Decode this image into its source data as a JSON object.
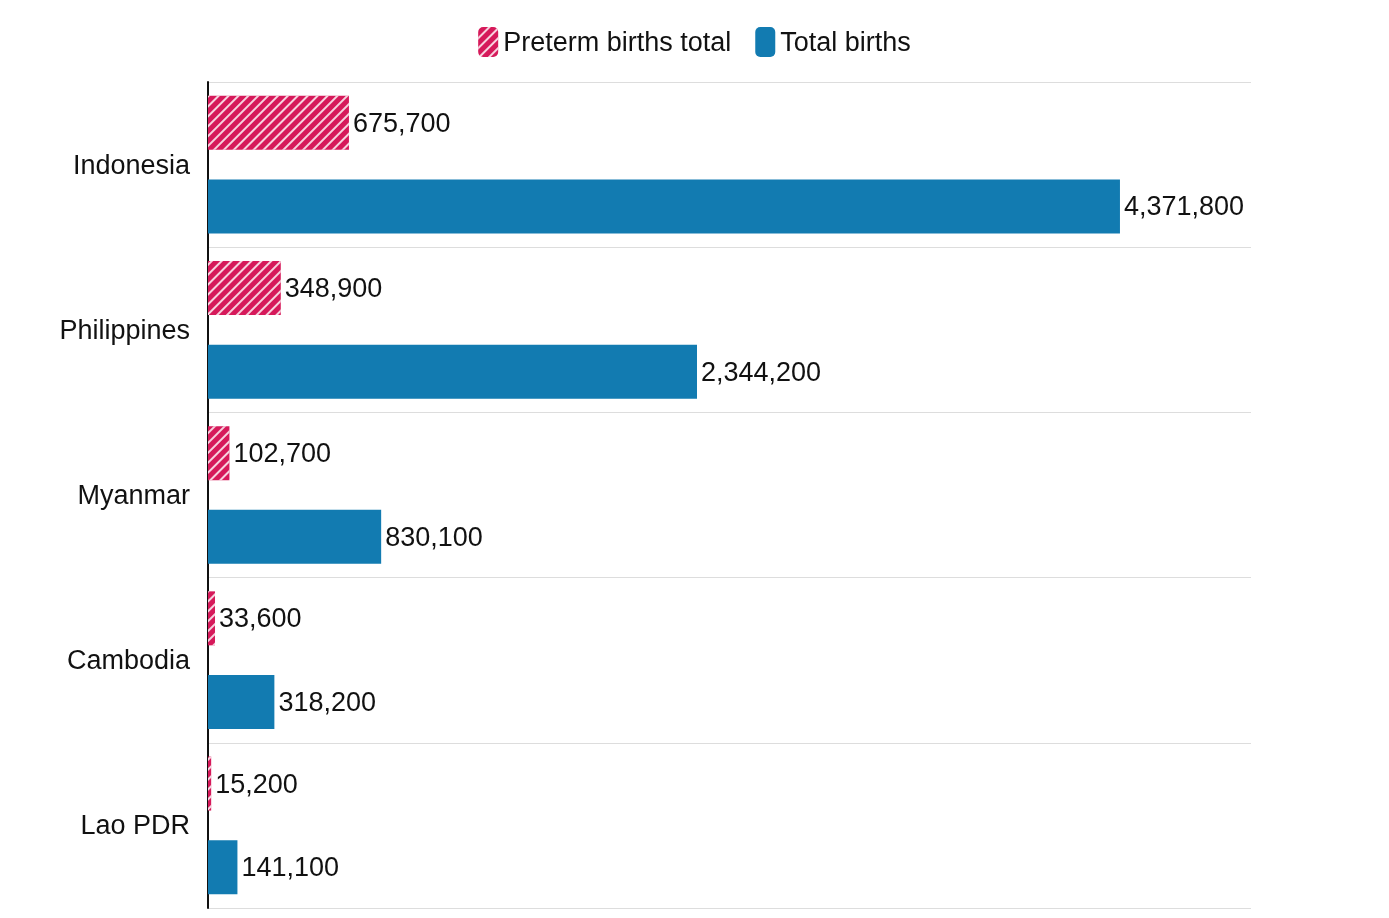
{
  "chart_data": {
    "type": "bar",
    "orientation": "horizontal",
    "categories": [
      "Indonesia",
      "Philippines",
      "Myanmar",
      "Cambodia",
      "Lao PDR"
    ],
    "series": [
      {
        "name": "Preterm births total",
        "color": "#d6195a",
        "values": [
          675700,
          348900,
          102700,
          33600,
          15200
        ],
        "value_labels": [
          "675,700",
          "348,900",
          "102,700",
          "33,600",
          "15,200"
        ]
      },
      {
        "name": "Total births",
        "color": "#127bb1",
        "values": [
          4371800,
          2344200,
          830100,
          318200,
          141100
        ],
        "value_labels": [
          "4,371,800",
          "2,344,200",
          "830,100",
          "318,200",
          "141,100"
        ]
      }
    ],
    "legend": "top",
    "grid": "y"
  }
}
